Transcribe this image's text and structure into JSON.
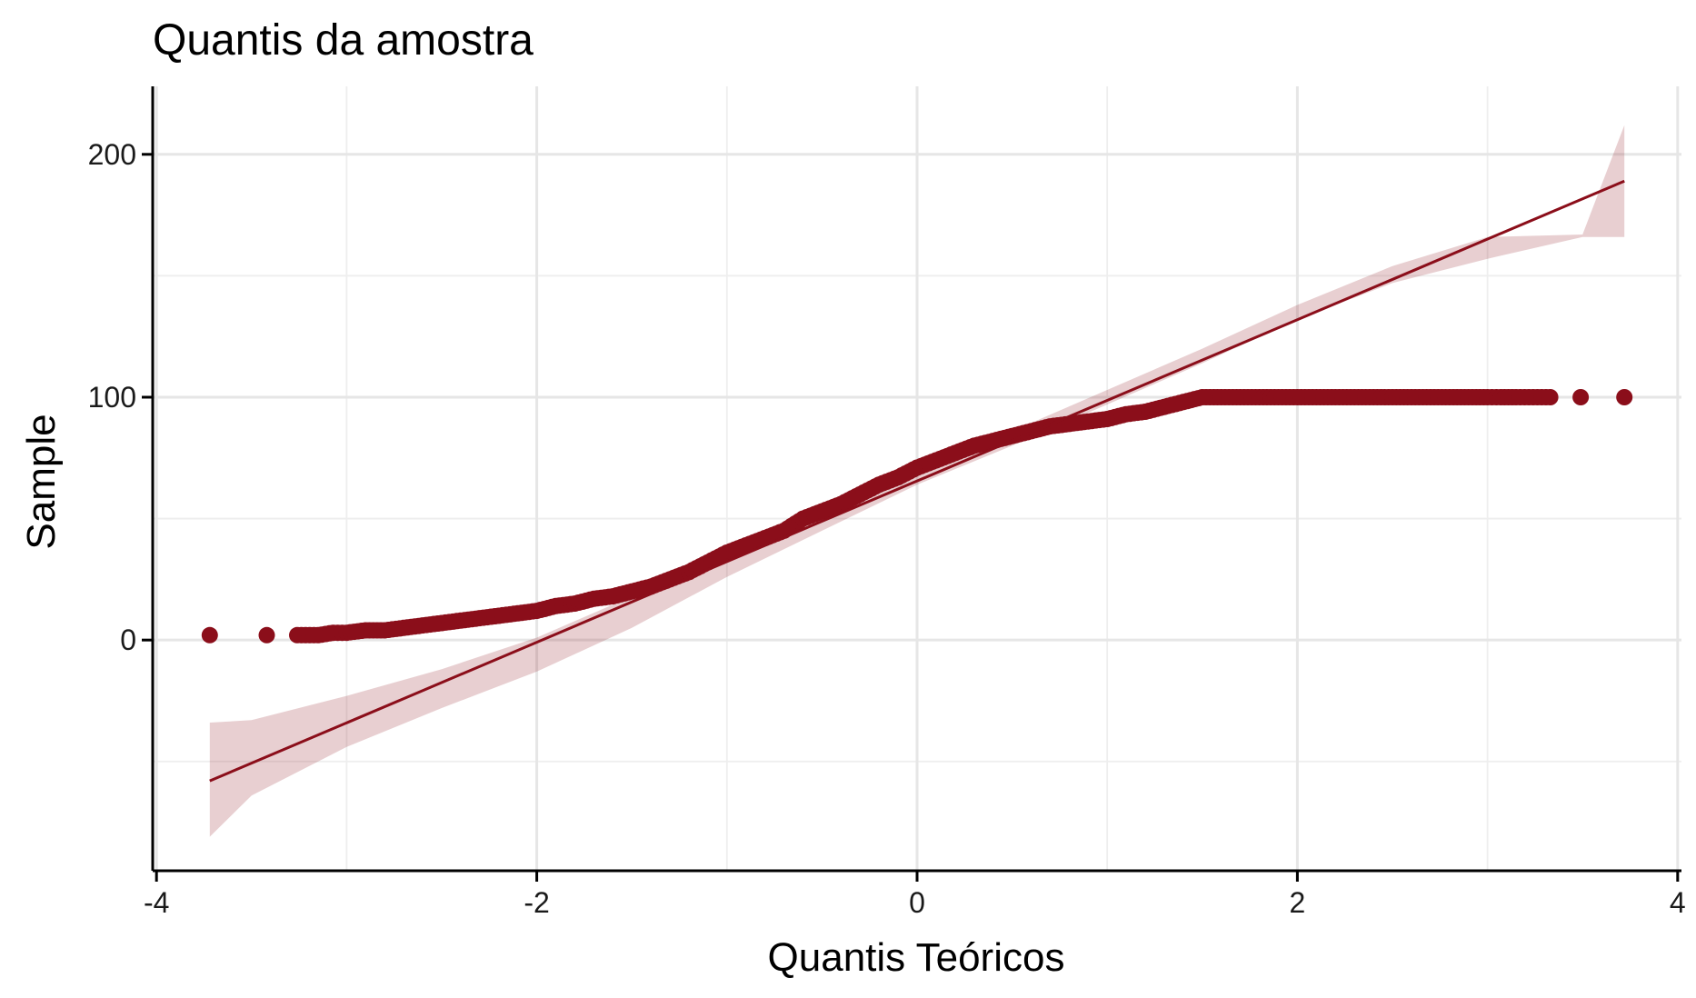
{
  "chart_data": {
    "type": "scatter",
    "title": "Quantis da amostra",
    "xlabel": "Quantis Teóricos",
    "ylabel": "Sample",
    "xlim": [
      -4.02,
      4.02
    ],
    "ylim": [
      -95,
      228
    ],
    "xticks": [
      -4,
      -2,
      0,
      2,
      4
    ],
    "yticks": [
      0,
      100,
      200
    ],
    "xtick_labels": [
      "-4",
      "-2",
      "0",
      "2",
      "4"
    ],
    "ytick_labels": [
      "0",
      "100",
      "200"
    ],
    "grid": true,
    "legend": "none",
    "colors": {
      "points": "#8b0e1a",
      "line": "#8b0e1a",
      "band": "#8b0e1a",
      "band_opacity": 0.2
    },
    "reference_line": {
      "x": [
        -3.72,
        3.72
      ],
      "y": [
        -58,
        189
      ]
    },
    "confidence_band": {
      "x": [
        -3.72,
        -3.5,
        -3.0,
        -2.5,
        -2.0,
        -1.5,
        -1.0,
        -0.5,
        0,
        0.5,
        1.0,
        1.5,
        2.0,
        2.5,
        3.0,
        3.5,
        3.72
      ],
      "upper": [
        -34,
        -33,
        -23,
        -12,
        1,
        18,
        37,
        55,
        70,
        86,
        103,
        120,
        138,
        154,
        166,
        167,
        212
      ],
      "lower": [
        -81,
        -64,
        -44,
        -28,
        -13,
        5,
        26,
        45,
        64,
        80,
        97,
        114,
        132,
        147,
        157,
        166,
        166
      ]
    },
    "sample_quantiles": {
      "x": [
        -3.72,
        -3.42,
        -3.26,
        -3.15,
        -3.07,
        -3.0,
        -2.9,
        -2.8,
        -2.7,
        -2.6,
        -2.5,
        -2.4,
        -2.3,
        -2.2,
        -2.1,
        -2.0,
        -1.9,
        -1.8,
        -1.7,
        -1.6,
        -1.5,
        -1.4,
        -1.3,
        -1.2,
        -1.1,
        -1.0,
        -0.9,
        -0.8,
        -0.7,
        -0.6,
        -0.5,
        -0.4,
        -0.3,
        -0.2,
        -0.1,
        0.0,
        0.1,
        0.2,
        0.3,
        0.4,
        0.5,
        0.6,
        0.7,
        0.8,
        0.9,
        1.0,
        1.1,
        1.2,
        1.3,
        1.4,
        1.5,
        1.6,
        1.7,
        1.8,
        1.9,
        2.0,
        2.1,
        2.2,
        2.3,
        2.4,
        2.5,
        2.6,
        2.7,
        2.8,
        2.9,
        3.0,
        3.07,
        3.15,
        3.24,
        3.33,
        3.49,
        3.72
      ],
      "y": [
        2,
        2,
        2,
        2,
        3,
        3,
        4,
        4,
        5,
        6,
        7,
        8,
        9,
        10,
        11,
        12,
        14,
        15,
        17,
        18,
        20,
        22,
        25,
        28,
        32,
        36,
        39,
        42,
        45,
        50,
        53,
        56,
        60,
        64,
        67,
        71,
        74,
        77,
        80,
        82,
        84,
        86,
        88,
        89,
        90,
        91,
        93,
        94,
        96,
        98,
        100,
        100,
        100,
        100,
        100,
        100,
        100,
        100,
        100,
        100,
        100,
        100,
        100,
        100,
        100,
        100,
        100,
        100,
        100,
        100,
        100,
        100
      ]
    }
  }
}
